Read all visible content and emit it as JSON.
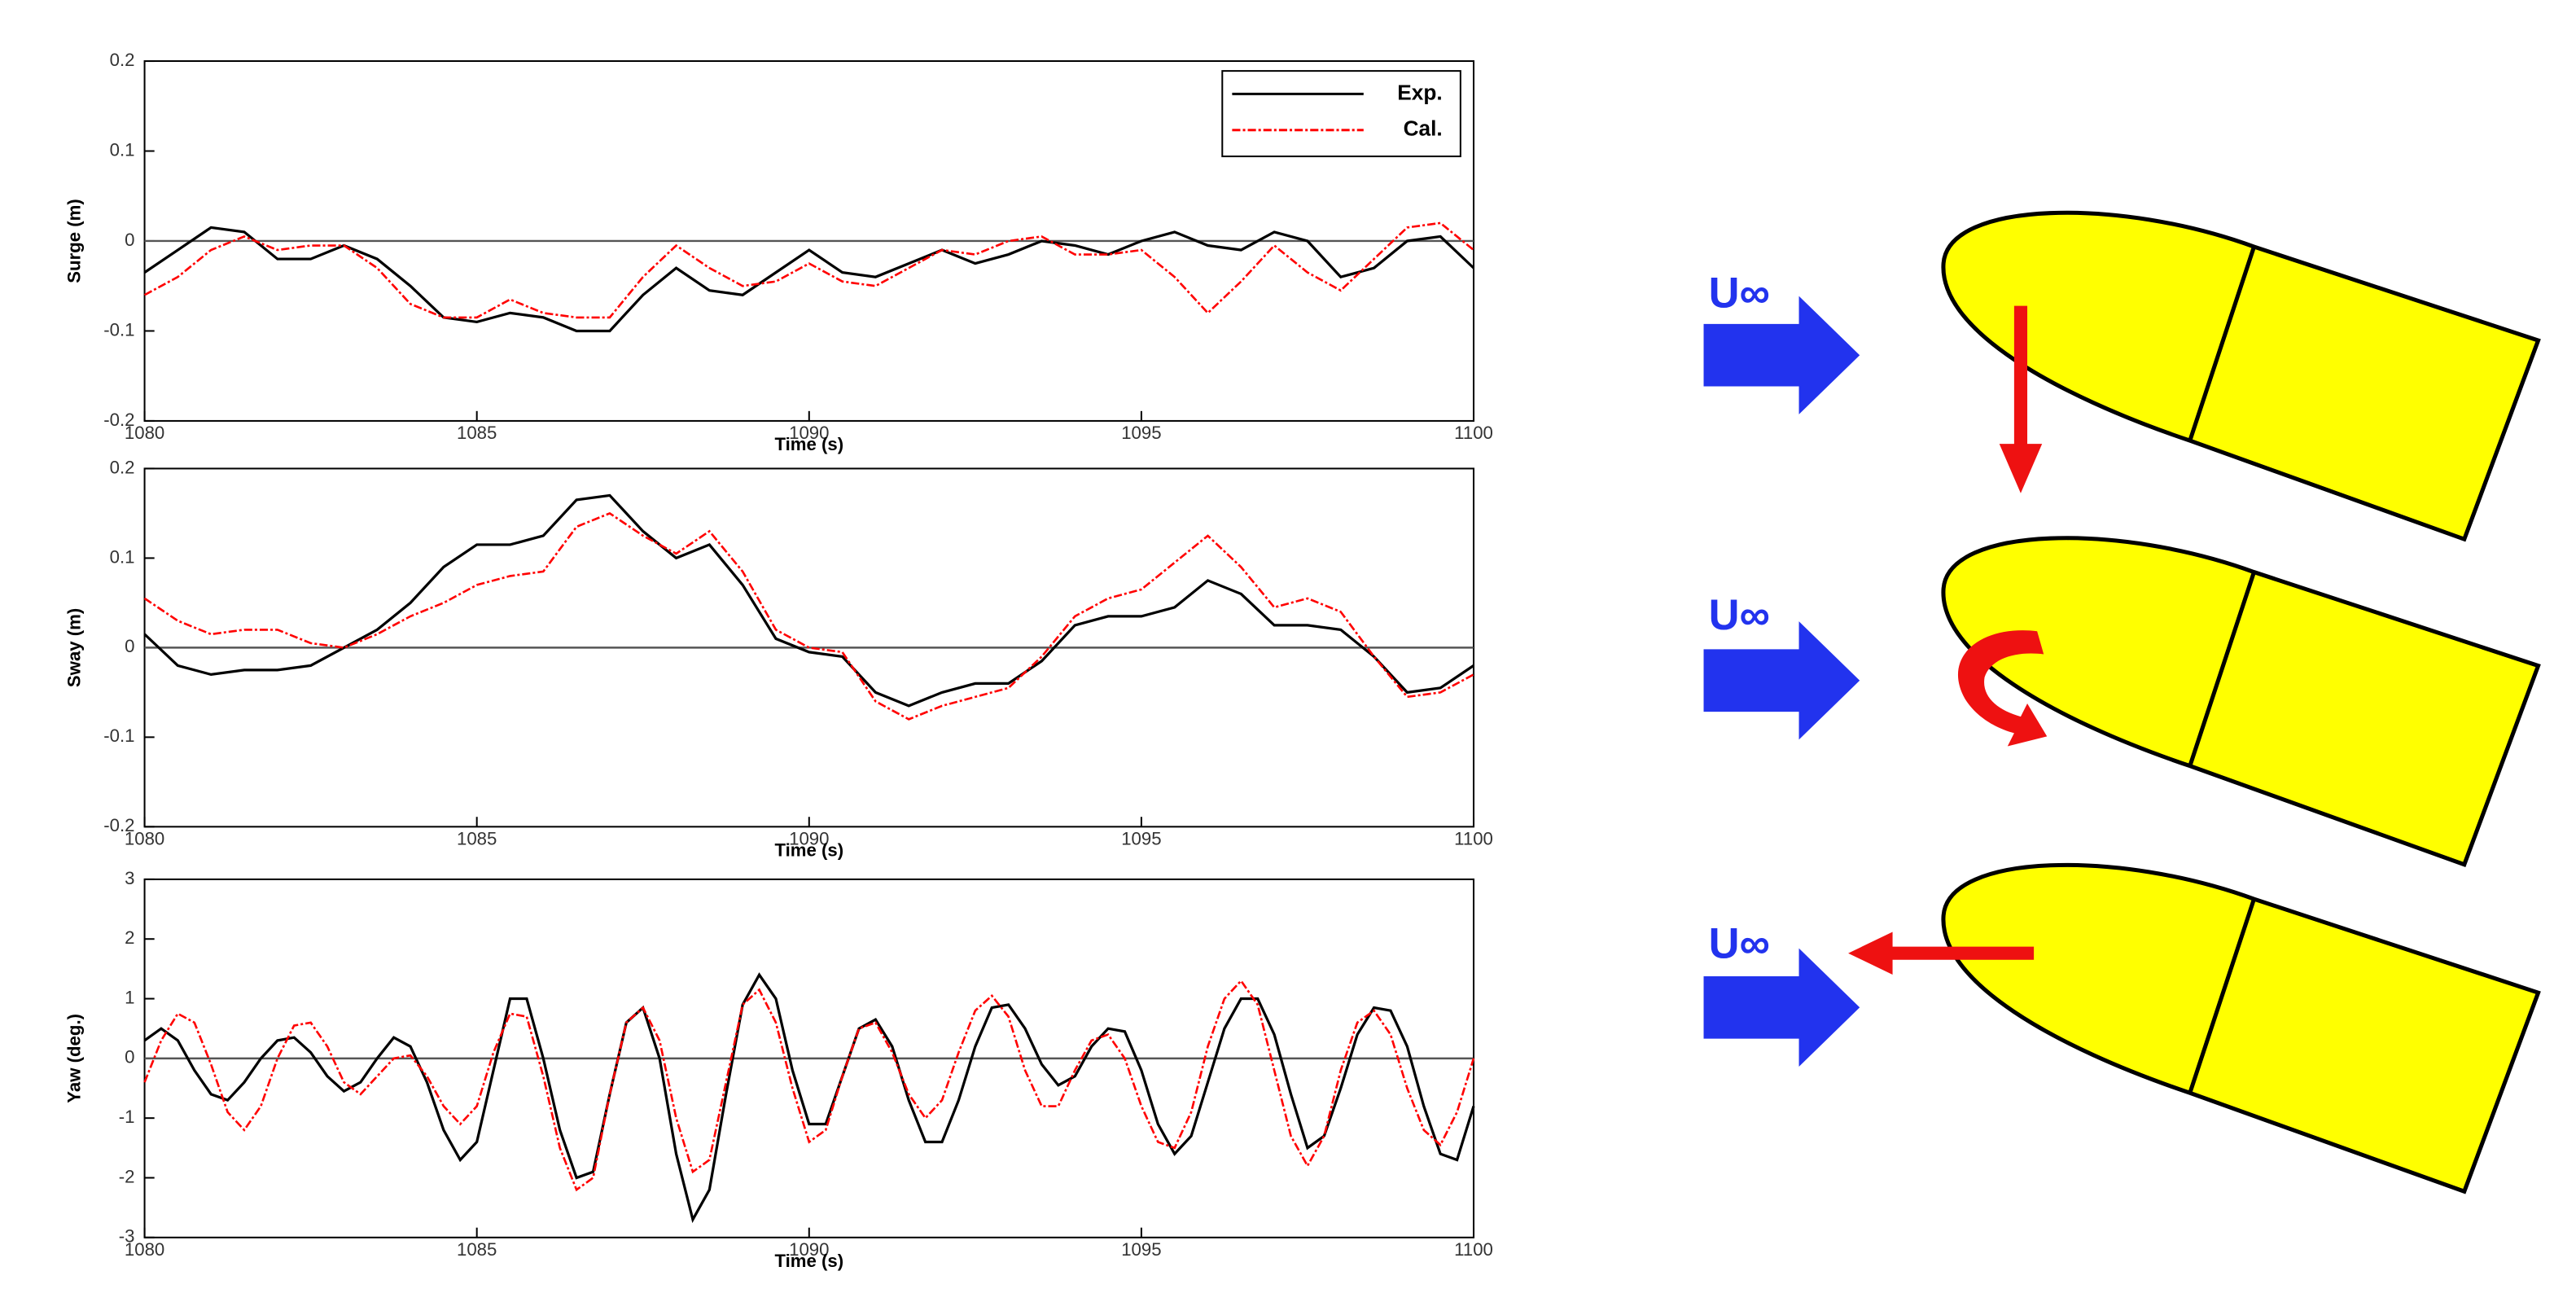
{
  "chart_data": [
    {
      "type": "line",
      "ylabel": "Surge (m)",
      "xlabel": "Time (s)",
      "xlim": [
        1080,
        1100
      ],
      "xticks": [
        1080,
        1085,
        1090,
        1095,
        1100
      ],
      "ylim": [
        -0.2,
        0.2
      ],
      "yticks": [
        0.2,
        0.1,
        0,
        -0.1,
        -0.2
      ],
      "zero_line": true,
      "legend": "upper right",
      "x": [
        1080,
        1080.5,
        1081,
        1081.5,
        1082,
        1082.5,
        1083,
        1083.5,
        1084,
        1084.5,
        1085,
        1085.5,
        1086,
        1086.5,
        1087,
        1087.5,
        1088,
        1088.5,
        1089,
        1089.5,
        1090,
        1090.5,
        1091,
        1091.5,
        1092,
        1092.5,
        1093,
        1093.5,
        1094,
        1094.5,
        1095,
        1095.5,
        1096,
        1096.5,
        1097,
        1097.5,
        1098,
        1098.5,
        1099,
        1099.5,
        1100
      ],
      "series": [
        {
          "name": "Exp.",
          "color": "#000000",
          "values": [
            -0.035,
            -0.01,
            0.015,
            0.01,
            -0.02,
            -0.02,
            -0.005,
            -0.02,
            -0.05,
            -0.085,
            -0.09,
            -0.08,
            -0.085,
            -0.1,
            -0.1,
            -0.06,
            -0.03,
            -0.055,
            -0.06,
            -0.035,
            -0.01,
            -0.035,
            -0.04,
            -0.025,
            -0.01,
            -0.025,
            -0.015,
            0,
            -0.005,
            -0.015,
            0,
            0.01,
            -0.005,
            -0.01,
            0.01,
            0,
            -0.04,
            -0.03,
            0,
            0.005,
            -0.03
          ]
        },
        {
          "name": "Cal.",
          "color": "#ff0000",
          "values": [
            -0.06,
            -0.04,
            -0.01,
            0.005,
            -0.01,
            -0.005,
            -0.005,
            -0.03,
            -0.07,
            -0.085,
            -0.085,
            -0.065,
            -0.08,
            -0.085,
            -0.085,
            -0.04,
            -0.005,
            -0.03,
            -0.05,
            -0.045,
            -0.025,
            -0.045,
            -0.05,
            -0.03,
            -0.01,
            -0.015,
            0,
            0.005,
            -0.015,
            -0.015,
            -0.01,
            -0.04,
            -0.08,
            -0.045,
            -0.005,
            -0.035,
            -0.055,
            -0.02,
            0.015,
            0.02,
            -0.01
          ]
        }
      ]
    },
    {
      "type": "line",
      "ylabel": "Sway (m)",
      "xlabel": "Time (s)",
      "xlim": [
        1080,
        1100
      ],
      "xticks": [
        1080,
        1085,
        1090,
        1095,
        1100
      ],
      "ylim": [
        -0.2,
        0.2
      ],
      "yticks": [
        0.2,
        0.1,
        0,
        -0.1,
        -0.2
      ],
      "zero_line": true,
      "x": [
        1080,
        1080.5,
        1081,
        1081.5,
        1082,
        1082.5,
        1083,
        1083.5,
        1084,
        1084.5,
        1085,
        1085.5,
        1086,
        1086.5,
        1087,
        1087.5,
        1088,
        1088.5,
        1089,
        1089.5,
        1090,
        1090.5,
        1091,
        1091.5,
        1092,
        1092.5,
        1093,
        1093.5,
        1094,
        1094.5,
        1095,
        1095.5,
        1096,
        1096.5,
        1097,
        1097.5,
        1098,
        1098.5,
        1099,
        1099.5,
        1100
      ],
      "series": [
        {
          "name": "Exp.",
          "color": "#000000",
          "values": [
            0.015,
            -0.02,
            -0.03,
            -0.025,
            -0.025,
            -0.02,
            0,
            0.02,
            0.05,
            0.09,
            0.115,
            0.115,
            0.125,
            0.165,
            0.17,
            0.13,
            0.1,
            0.115,
            0.07,
            0.01,
            -0.005,
            -0.01,
            -0.05,
            -0.065,
            -0.05,
            -0.04,
            -0.04,
            -0.015,
            0.025,
            0.035,
            0.035,
            0.045,
            0.075,
            0.06,
            0.025,
            0.025,
            0.02,
            -0.01,
            -0.05,
            -0.045,
            -0.02
          ]
        },
        {
          "name": "Cal.",
          "color": "#ff0000",
          "values": [
            0.055,
            0.03,
            0.015,
            0.02,
            0.02,
            0.005,
            0,
            0.015,
            0.035,
            0.05,
            0.07,
            0.08,
            0.085,
            0.135,
            0.15,
            0.125,
            0.105,
            0.13,
            0.085,
            0.02,
            0,
            -0.005,
            -0.06,
            -0.08,
            -0.065,
            -0.055,
            -0.045,
            -0.01,
            0.035,
            0.055,
            0.065,
            0.095,
            0.125,
            0.09,
            0.045,
            0.055,
            0.04,
            -0.01,
            -0.055,
            -0.05,
            -0.03
          ]
        }
      ]
    },
    {
      "type": "line",
      "ylabel": "Yaw (deg.)",
      "xlabel": "Time (s)",
      "xlim": [
        1080,
        1100
      ],
      "xticks": [
        1080,
        1085,
        1090,
        1095,
        1100
      ],
      "ylim": [
        -3,
        3
      ],
      "yticks": [
        3,
        2,
        1,
        0,
        -1,
        -2,
        -3
      ],
      "zero_line": true,
      "x": [
        1080,
        1080.25,
        1080.5,
        1080.75,
        1081,
        1081.25,
        1081.5,
        1081.75,
        1082,
        1082.25,
        1082.5,
        1082.75,
        1083,
        1083.25,
        1083.5,
        1083.75,
        1084,
        1084.25,
        1084.5,
        1084.75,
        1085,
        1085.25,
        1085.5,
        1085.75,
        1086,
        1086.25,
        1086.5,
        1086.75,
        1087,
        1087.25,
        1087.5,
        1087.75,
        1088,
        1088.25,
        1088.5,
        1088.75,
        1089,
        1089.25,
        1089.5,
        1089.75,
        1090,
        1090.25,
        1090.5,
        1090.75,
        1091,
        1091.25,
        1091.5,
        1091.75,
        1092,
        1092.25,
        1092.5,
        1092.75,
        1093,
        1093.25,
        1093.5,
        1093.75,
        1094,
        1094.25,
        1094.5,
        1094.75,
        1095,
        1095.25,
        1095.5,
        1095.75,
        1096,
        1096.25,
        1096.5,
        1096.75,
        1097,
        1097.25,
        1097.5,
        1097.75,
        1098,
        1098.25,
        1098.5,
        1098.75,
        1099,
        1099.25,
        1099.5,
        1099.75,
        1100
      ],
      "series": [
        {
          "name": "Exp.",
          "color": "#000000",
          "values": [
            0.3,
            0.5,
            0.3,
            -0.2,
            -0.6,
            -0.7,
            -0.4,
            0,
            0.3,
            0.35,
            0.1,
            -0.3,
            -0.55,
            -0.4,
            0,
            0.35,
            0.2,
            -0.4,
            -1.2,
            -1.7,
            -1.4,
            -0.2,
            1,
            1,
            0,
            -1.2,
            -2,
            -1.9,
            -0.6,
            0.6,
            0.85,
            0,
            -1.6,
            -2.7,
            -2.2,
            -0.6,
            0.9,
            1.4,
            1,
            -0.2,
            -1.1,
            -1.1,
            -0.3,
            0.5,
            0.65,
            0.2,
            -0.7,
            -1.4,
            -1.4,
            -0.7,
            0.2,
            0.85,
            0.9,
            0.5,
            -0.1,
            -0.45,
            -0.3,
            0.2,
            0.5,
            0.45,
            -0.2,
            -1.1,
            -1.6,
            -1.3,
            -0.4,
            0.5,
            1,
            1,
            0.4,
            -0.6,
            -1.5,
            -1.3,
            -0.5,
            0.4,
            0.85,
            0.8,
            0.2,
            -0.8,
            -1.6,
            -1.7,
            -0.8
          ]
        },
        {
          "name": "Cal.",
          "color": "#ff0000",
          "values": [
            -0.4,
            0.3,
            0.75,
            0.6,
            -0.1,
            -0.9,
            -1.2,
            -0.8,
            0,
            0.55,
            0.6,
            0.2,
            -0.4,
            -0.6,
            -0.3,
            0,
            0.05,
            -0.3,
            -0.8,
            -1.1,
            -0.8,
            0.1,
            0.75,
            0.7,
            -0.3,
            -1.5,
            -2.2,
            -2,
            -0.6,
            0.6,
            0.85,
            0.3,
            -1,
            -1.9,
            -1.7,
            -0.4,
            0.9,
            1.15,
            0.6,
            -0.5,
            -1.4,
            -1.2,
            -0.3,
            0.5,
            0.6,
            0.1,
            -0.6,
            -1,
            -0.7,
            0.1,
            0.8,
            1.05,
            0.7,
            -0.2,
            -0.8,
            -0.8,
            -0.2,
            0.3,
            0.4,
            0,
            -0.8,
            -1.4,
            -1.5,
            -0.9,
            0.2,
            1,
            1.3,
            0.9,
            -0.2,
            -1.3,
            -1.8,
            -1.3,
            -0.2,
            0.6,
            0.8,
            0.4,
            -0.5,
            -1.2,
            -1.45,
            -0.9,
            0
          ]
        }
      ]
    }
  ],
  "diagram": {
    "labels": [
      "U∞",
      "U∞",
      "U∞"
    ]
  }
}
